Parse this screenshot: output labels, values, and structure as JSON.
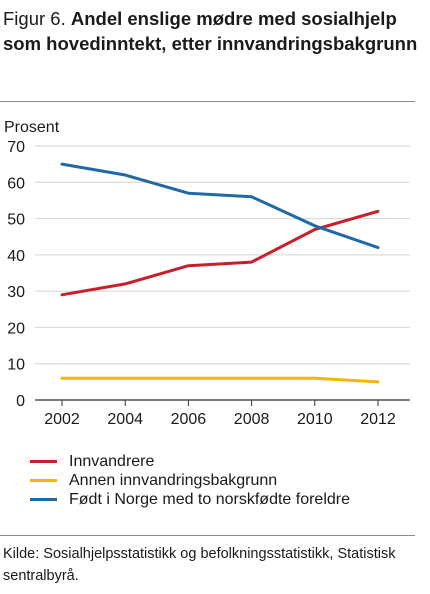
{
  "title": {
    "figure_label": "Figur 6.",
    "text": "Andel enslige mødre med sosialhjelp som hovedinntekt, etter innvandringsbakgrunn"
  },
  "source": "Kilde: Sosialhjelpsstatistikk og befolkningsstatistikk, Statistisk sentralbyrå.",
  "chart_data": {
    "type": "line",
    "title": "Andel enslige mødre med sosialhjelp som hovedinntekt, etter innvandringsbakgrunn",
    "ylabel": "Prosent",
    "xlabel": "",
    "x": [
      2002,
      2004,
      2006,
      2008,
      2010,
      2012
    ],
    "ylim": [
      0,
      70
    ],
    "yticks": [
      0,
      10,
      20,
      30,
      40,
      50,
      60,
      70
    ],
    "grid": true,
    "legend_position": "bottom",
    "series": [
      {
        "name": "Innvandrere",
        "color": "#c8202b",
        "values": [
          29,
          32,
          37,
          38,
          47,
          52
        ]
      },
      {
        "name": "Annen innvandringsbakgrunn",
        "color": "#f2b705",
        "values": [
          6,
          6,
          6,
          6,
          6,
          5
        ]
      },
      {
        "name": "Født i Norge med to norskfødte foreldre",
        "color": "#1f6aa5",
        "values": [
          65,
          62,
          57,
          56,
          48,
          42
        ]
      }
    ]
  }
}
